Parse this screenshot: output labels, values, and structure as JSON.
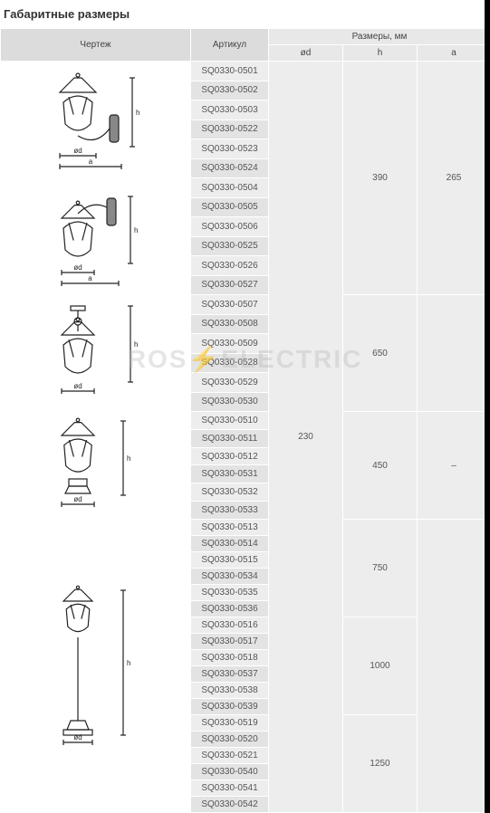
{
  "title": "Габаритные размеры",
  "headers": {
    "drawing": "Чертеж",
    "article": "Артикул",
    "dims_group": "Размеры, мм",
    "od": "ød",
    "h": "h",
    "a": "a"
  },
  "watermark": {
    "left": "ROS",
    "right": "ELECTRIC"
  },
  "dim_shared_od": "230",
  "groups": [
    {
      "drawing": "lantern_up_wall",
      "draw_h": 120,
      "articles": [
        "SQ0330-0501",
        "SQ0330-0502",
        "SQ0330-0503",
        "SQ0330-0522",
        "SQ0330-0523",
        "SQ0330-0524"
      ],
      "h": "390",
      "a": "265",
      "h_a_span": 2
    },
    {
      "drawing": "lantern_down_wall",
      "draw_h": 120,
      "articles": [
        "SQ0330-0504",
        "SQ0330-0505",
        "SQ0330-0506",
        "SQ0330-0525",
        "SQ0330-0526",
        "SQ0330-0527"
      ]
    },
    {
      "drawing": "lantern_ceiling",
      "draw_h": 120,
      "articles": [
        "SQ0330-0507",
        "SQ0330-0508",
        "SQ0330-0509",
        "SQ0330-0528",
        "SQ0330-0529",
        "SQ0330-0530"
      ],
      "h": "650",
      "a": "",
      "h_a_span": 1
    },
    {
      "drawing": "lantern_pedestal",
      "draw_h": 110,
      "articles": [
        "SQ0330-0510",
        "SQ0330-0511",
        "SQ0330-0512",
        "SQ0330-0531",
        "SQ0330-0532",
        "SQ0330-0533"
      ],
      "h": "450",
      "a": "–",
      "h_a_span": 1
    },
    {
      "drawing": "lantern_post",
      "draw_h": 180,
      "sections": [
        {
          "articles": [
            "SQ0330-0513",
            "SQ0330-0514",
            "SQ0330-0515",
            "SQ0330-0534",
            "SQ0330-0535",
            "SQ0330-0536"
          ],
          "h": "750"
        },
        {
          "articles": [
            "SQ0330-0516",
            "SQ0330-0517",
            "SQ0330-0518",
            "SQ0330-0537",
            "SQ0330-0538",
            "SQ0330-0539"
          ],
          "h": "1000"
        },
        {
          "articles": [
            "SQ0330-0519",
            "SQ0330-0520",
            "SQ0330-0521",
            "SQ0330-0540",
            "SQ0330-0541",
            "SQ0330-0542"
          ],
          "h": "1250"
        }
      ],
      "a": ""
    }
  ],
  "colors": {
    "header_bg": "#e8e8e8",
    "cell_bg": "#ededed",
    "stroke": "#222222"
  }
}
